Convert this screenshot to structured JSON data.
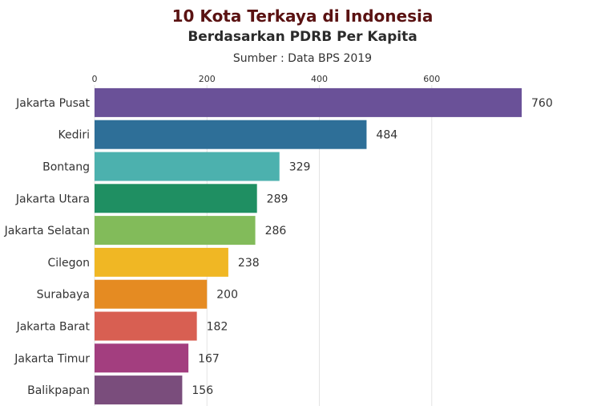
{
  "chart_data": {
    "type": "bar",
    "orientation": "horizontal",
    "title": "10 Kota Terkaya di Indonesia",
    "subtitle": "Berdasarkan PDRB Per Kapita",
    "source": "Sumber : Data BPS 2019",
    "xlabel": "",
    "ylabel": "",
    "categories": [
      "Jakarta Pusat",
      "Kediri",
      "Bontang",
      "Jakarta Utara",
      "Jakarta Selatan",
      "Cilegon",
      "Surabaya",
      "Jakarta Barat",
      "Jakarta Timur",
      "Balikpapan"
    ],
    "values": [
      760,
      484,
      329,
      289,
      286,
      238,
      200,
      182,
      167,
      156
    ],
    "value_labels": [
      "760",
      "484",
      "329",
      "289",
      "286",
      "238",
      "200",
      "182",
      "167",
      "156"
    ],
    "colors": [
      "#6a5198",
      "#2e6f98",
      "#4cb1ae",
      "#1f8f62",
      "#82bb5a",
      "#f0b724",
      "#e58b22",
      "#d85f52",
      "#a33e7f",
      "#7a4d7c"
    ],
    "xlim": [
      0,
      760
    ],
    "xticks": [
      0,
      200,
      400,
      600
    ],
    "xtick_labels": [
      "0",
      "200",
      "400",
      "600"
    ],
    "x_axis_position": "top",
    "grid": true,
    "legend": "none"
  }
}
